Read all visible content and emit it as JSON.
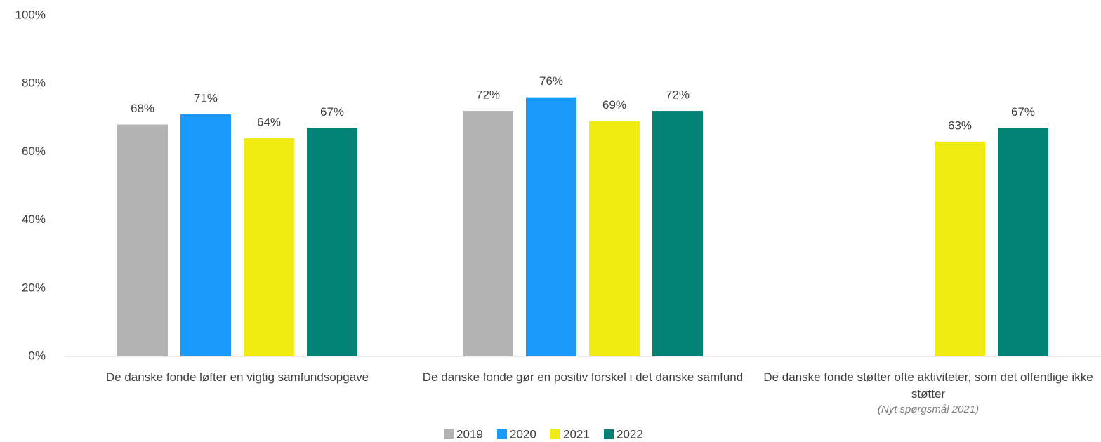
{
  "chart_data": {
    "type": "bar",
    "categories": [
      "De danske fonde løfter en vigtig samfundsopgave",
      "De danske fonde gør en positiv forskel i det danske samfund",
      "De danske fonde støtter ofte aktiviteter, som det offentlige ikke støtter"
    ],
    "annotations": [
      {
        "category": 2,
        "text": "(Nyt spørgsmål 2021)"
      }
    ],
    "series": [
      {
        "name": "2019",
        "color": "#b3b3b3",
        "values": [
          68,
          72,
          null
        ],
        "value_labels": [
          "68%",
          "72%",
          null
        ]
      },
      {
        "name": "2020",
        "color": "#1a9bfc",
        "values": [
          71,
          76,
          null
        ],
        "value_labels": [
          "71%",
          "76%",
          null
        ]
      },
      {
        "name": "2021",
        "color": "#f0eb10",
        "values": [
          64,
          69,
          63
        ],
        "value_labels": [
          "64%",
          "69%",
          "63%"
        ]
      },
      {
        "name": "2022",
        "color": "#008375",
        "values": [
          67,
          72,
          67
        ],
        "value_labels": [
          "67%",
          "72%",
          "67%"
        ]
      }
    ],
    "ylim": [
      0,
      100
    ],
    "yticks": [
      {
        "value": 0,
        "label": "0%"
      },
      {
        "value": 20,
        "label": "20%"
      },
      {
        "value": 40,
        "label": "40%"
      },
      {
        "value": 60,
        "label": "60%"
      },
      {
        "value": 80,
        "label": "80%"
      },
      {
        "value": 100,
        "label": "100%"
      }
    ],
    "grid": false,
    "legend": "bottom"
  }
}
